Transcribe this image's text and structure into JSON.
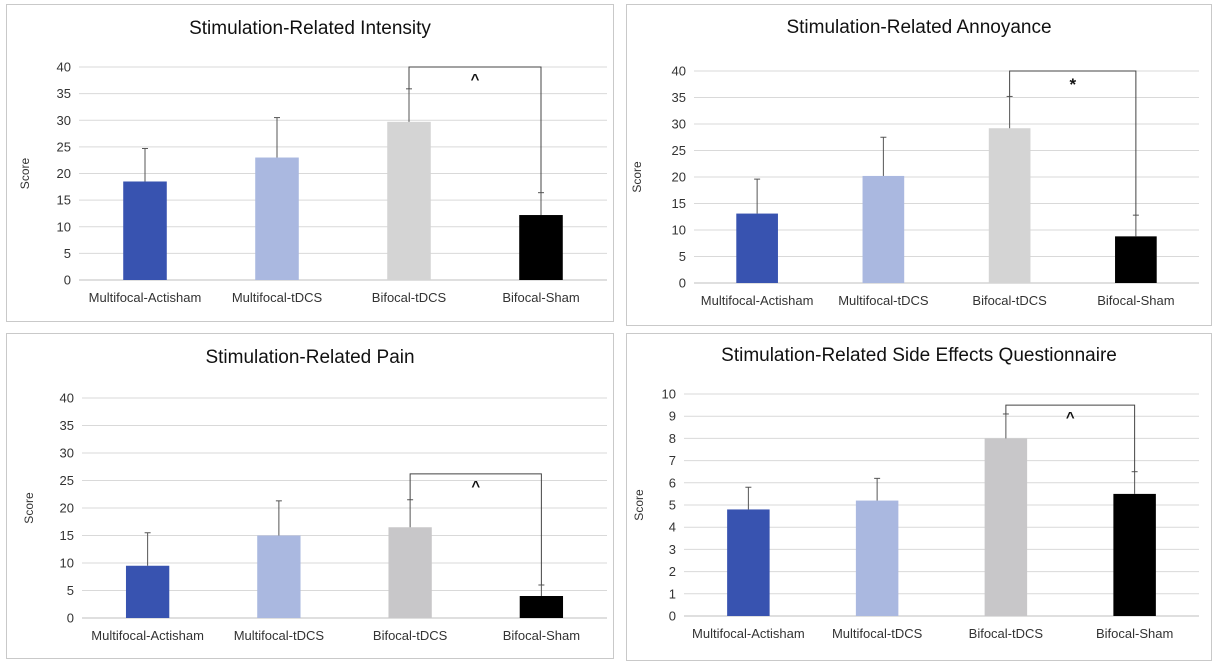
{
  "chart_data": [
    {
      "type": "bar",
      "title": "Stimulation-Related Intensity",
      "ylabel": "Score",
      "xlabel": "",
      "categories": [
        "Multifocal-Actisham",
        "Multifocal-tDCS",
        "Bifocal-tDCS",
        "Bifocal-Sham"
      ],
      "values": [
        18.5,
        23.0,
        29.7,
        12.2
      ],
      "errors": [
        6.2,
        7.5,
        6.2,
        4.2
      ],
      "ylim": [
        0,
        40
      ],
      "yticks": [
        0,
        5,
        10,
        15,
        20,
        25,
        30,
        35,
        40
      ],
      "grid": true,
      "significance": {
        "from": 2,
        "to": 3,
        "level": 40,
        "label": "^"
      },
      "colors": [
        "#3853b0",
        "#aab8e0",
        "#d4d4d4",
        "#000000"
      ]
    },
    {
      "type": "bar",
      "title": "Stimulation-Related Annoyance",
      "ylabel": "Score",
      "xlabel": "",
      "categories": [
        "Multifocal-Actisham",
        "Multifocal-tDCS",
        "Bifocal-tDCS",
        "Bifocal-Sham"
      ],
      "values": [
        13.1,
        20.2,
        29.2,
        8.8
      ],
      "errors": [
        6.5,
        7.3,
        6.0,
        4.0
      ],
      "ylim": [
        0,
        40
      ],
      "yticks": [
        0,
        5,
        10,
        15,
        20,
        25,
        30,
        35,
        40
      ],
      "grid": true,
      "significance": {
        "from": 2,
        "to": 3,
        "level": 40,
        "label": "*"
      },
      "colors": [
        "#3853b0",
        "#aab8e0",
        "#d4d4d4",
        "#000000"
      ]
    },
    {
      "type": "bar",
      "title": "Stimulation-Related Pain",
      "ylabel": "Score",
      "xlabel": "",
      "categories": [
        "Multifocal-Actisham",
        "Multifocal-tDCS",
        "Bifocal-tDCS",
        "Bifocal-Sham"
      ],
      "values": [
        9.5,
        15.0,
        16.5,
        4.0
      ],
      "errors": [
        6.0,
        6.3,
        5.0,
        2.0
      ],
      "ylim": [
        0,
        40
      ],
      "yticks": [
        0,
        5,
        10,
        15,
        20,
        25,
        30,
        35,
        40
      ],
      "grid": true,
      "significance": {
        "from": 2,
        "to": 3,
        "level": 26.2,
        "label": "^"
      },
      "colors": [
        "#3853b0",
        "#aab8e0",
        "#c8c7c9",
        "#000000"
      ]
    },
    {
      "type": "bar",
      "title": "Stimulation-Related Side Effects Questionnaire",
      "ylabel": "Score",
      "xlabel": "",
      "categories": [
        "Multifocal-Actisham",
        "Multifocal-tDCS",
        "Bifocal-tDCS",
        "Bifocal-Sham"
      ],
      "values": [
        4.8,
        5.2,
        8.0,
        5.5
      ],
      "errors": [
        1.0,
        1.0,
        1.1,
        1.0
      ],
      "ylim": [
        0,
        10
      ],
      "yticks": [
        0,
        1,
        2,
        3,
        4,
        5,
        6,
        7,
        8,
        9,
        10
      ],
      "grid": true,
      "significance": {
        "from": 2,
        "to": 3,
        "level": 9.5,
        "label": "^"
      },
      "colors": [
        "#3853b0",
        "#aab8e0",
        "#c8c7c9",
        "#000000"
      ]
    }
  ]
}
